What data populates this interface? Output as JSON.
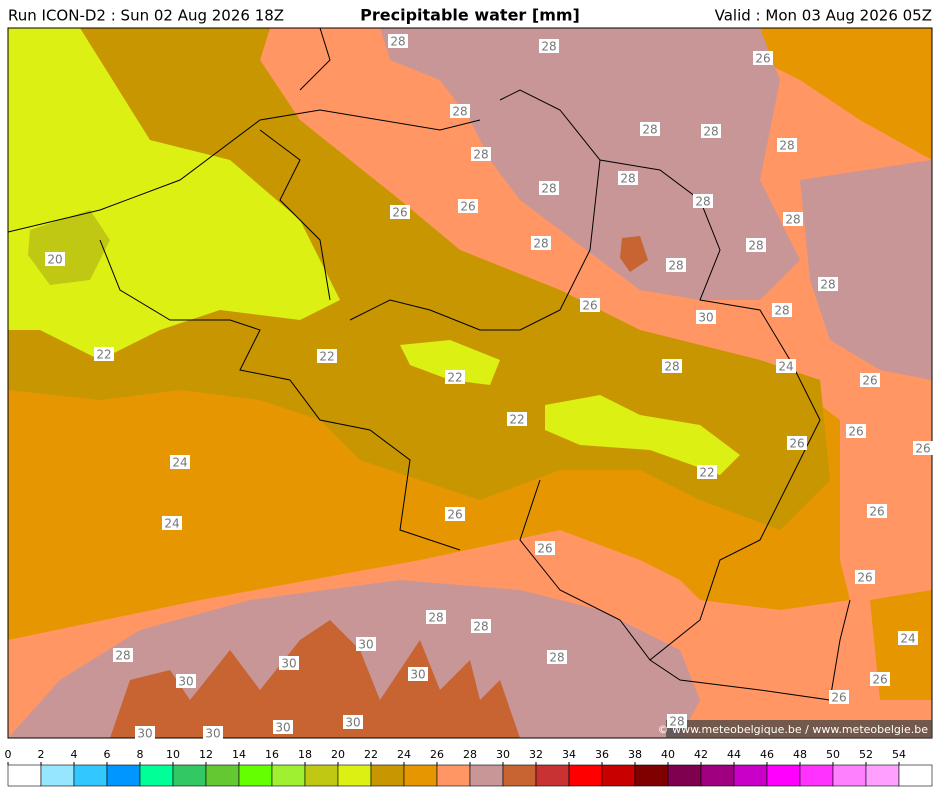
{
  "header": {
    "run": "Run ICON-D2 : Sun 02 Aug 2026 18Z",
    "title": "Precipitable water [mm]",
    "valid": "Valid : Mon 03 Aug 2026 05Z"
  },
  "contour_labels": [
    "28",
    "28",
    "26",
    "28",
    "28",
    "28",
    "28",
    "28",
    "28",
    "28",
    "28",
    "26",
    "26",
    "28",
    "28",
    "28",
    "20",
    "28",
    "28",
    "26",
    "30",
    "28",
    "22",
    "22",
    "22",
    "28",
    "24",
    "26",
    "22",
    "26",
    "26",
    "26",
    "24",
    "22",
    "24",
    "26",
    "26",
    "26",
    "26",
    "28",
    "28",
    "24",
    "30",
    "28",
    "28",
    "30",
    "30",
    "30",
    "26",
    "26",
    "30",
    "30",
    "30",
    "30",
    "28"
  ],
  "credit": "© www.meteobelgique.be / www.meteobelgie.be",
  "colorbar": {
    "ticks": [
      0,
      2,
      4,
      6,
      8,
      10,
      12,
      14,
      16,
      18,
      20,
      22,
      24,
      26,
      28,
      30,
      32,
      34,
      36,
      38,
      40,
      42,
      44,
      46,
      48,
      50,
      52,
      54
    ],
    "colors": [
      "#ffffff",
      "#96e6ff",
      "#32c8ff",
      "#0096ff",
      "#00ff96",
      "#32c864",
      "#64c832",
      "#64ff00",
      "#a0f032",
      "#c0c814",
      "#dcf014",
      "#c89600",
      "#e69600",
      "#ff9664",
      "#c89696",
      "#c86432",
      "#c83232",
      "#ff0000",
      "#c80000",
      "#800000",
      "#800050",
      "#a00080",
      "#c800c8",
      "#ff00ff",
      "#ff32ff",
      "#ff80ff",
      "#ffa0ff",
      "#ffffff"
    ]
  }
}
